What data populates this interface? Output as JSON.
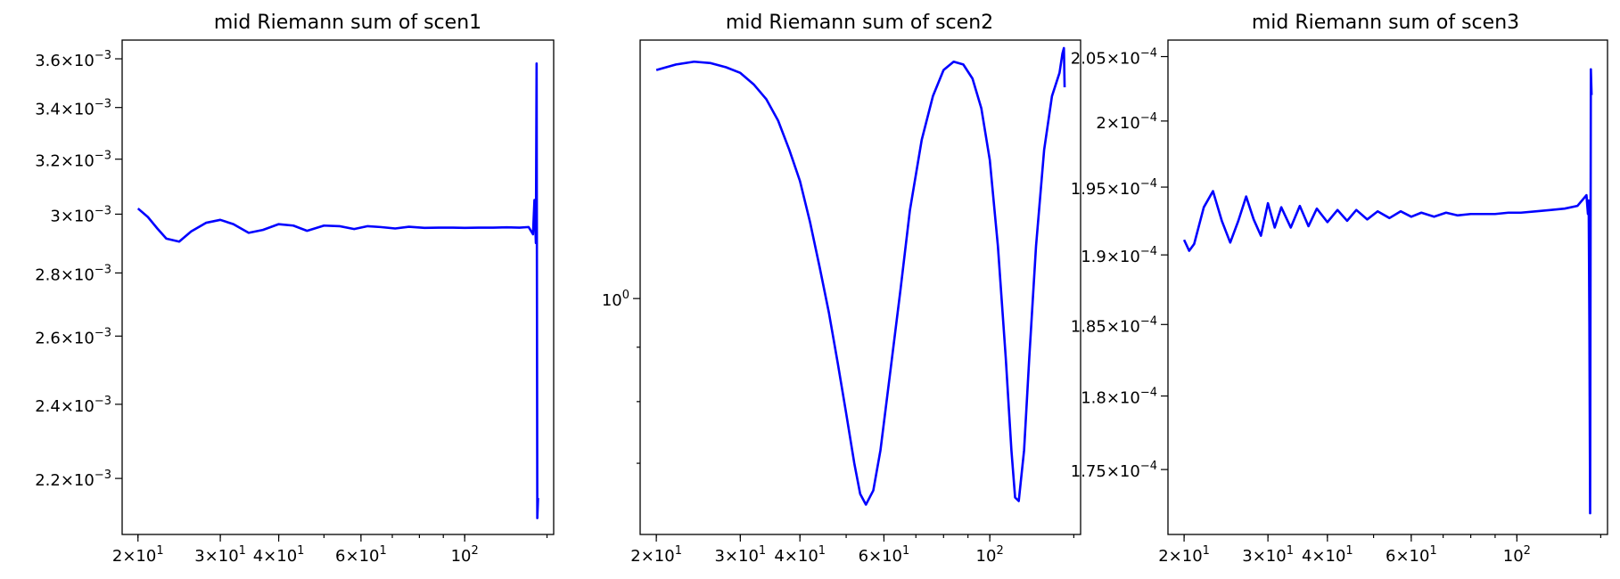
{
  "chart_data": [
    {
      "type": "line",
      "title": "mid Riemann sum of scen1",
      "x_scale": "log",
      "y_scale": "log",
      "xlim": [
        18.5,
        155
      ],
      "ylim": [
        0.00206,
        0.00368
      ],
      "x_ticks": [
        {
          "value": 20,
          "label": "2×10",
          "exp": "1"
        },
        {
          "value": 30,
          "label": "3×10",
          "exp": "1"
        },
        {
          "value": 40,
          "label": "4×10",
          "exp": "1"
        },
        {
          "value": 60,
          "label": "6×10",
          "exp": "1"
        },
        {
          "value": 100,
          "label": "10",
          "exp": "2"
        }
      ],
      "y_ticks": [
        {
          "value": 0.0022,
          "label": "2.2×10",
          "exp": "−3"
        },
        {
          "value": 0.0024,
          "label": "2.4×10",
          "exp": "−3"
        },
        {
          "value": 0.0026,
          "label": "2.6×10",
          "exp": "−3"
        },
        {
          "value": 0.0028,
          "label": "2.8×10",
          "exp": "−3"
        },
        {
          "value": 0.003,
          "label": "3×10",
          "exp": "−3"
        },
        {
          "value": 0.0032,
          "label": "3.2×10",
          "exp": "−3"
        },
        {
          "value": 0.0034,
          "label": "3.4×10",
          "exp": "−3"
        },
        {
          "value": 0.0036,
          "label": "3.6×10",
          "exp": "−3"
        }
      ],
      "series": [
        {
          "color": "#0000ff",
          "x": [
            20,
            21,
            22,
            23,
            24.5,
            26,
            28,
            30,
            32,
            34.5,
            37,
            40,
            43,
            46,
            50,
            54,
            58,
            62,
            66,
            71,
            76,
            82,
            88,
            94,
            100,
            107,
            115,
            123,
            131,
            137,
            140,
            141,
            142,
            142.5,
            143,
            143.5
          ],
          "y": [
            0.00302,
            0.00299,
            0.00295,
            0.002915,
            0.002905,
            0.00294,
            0.00297,
            0.00298,
            0.002965,
            0.002935,
            0.002945,
            0.002965,
            0.00296,
            0.002942,
            0.00296,
            0.002958,
            0.002948,
            0.002958,
            0.002955,
            0.00295,
            0.002956,
            0.002952,
            0.002953,
            0.002953,
            0.002952,
            0.002953,
            0.002953,
            0.002954,
            0.002953,
            0.002955,
            0.00293,
            0.00305,
            0.0029,
            0.00358,
            0.0021,
            0.00215
          ]
        }
      ]
    },
    {
      "type": "line",
      "title": "mid Riemann sum of scen2",
      "x_scale": "log",
      "y_scale": "log",
      "xlim": [
        18.5,
        155
      ],
      "ylim": [
        0.6,
        1.75
      ],
      "x_ticks": [
        {
          "value": 20,
          "label": "2×10",
          "exp": "1"
        },
        {
          "value": 30,
          "label": "3×10",
          "exp": "1"
        },
        {
          "value": 40,
          "label": "4×10",
          "exp": "1"
        },
        {
          "value": 60,
          "label": "6×10",
          "exp": "1"
        },
        {
          "value": 100,
          "label": "10",
          "exp": "2"
        }
      ],
      "y_ticks": [
        {
          "value": 1,
          "label": "10",
          "exp": "0"
        }
      ],
      "y_minor_ticks": [
        0.7,
        0.8,
        0.9,
        2,
        3,
        4,
        5,
        6
      ],
      "series": [
        {
          "color": "#0000ff",
          "x": [
            20,
            22,
            24,
            26,
            28,
            30,
            32,
            34,
            36,
            38,
            40,
            42,
            44,
            46,
            48,
            50,
            52,
            53.5,
            55,
            57,
            59,
            62,
            65,
            68,
            72,
            76,
            80,
            84,
            88,
            92,
            96,
            100,
            104,
            108,
            111,
            113,
            115,
            118,
            121,
            125,
            130,
            135,
            140,
            142,
            143,
            143.5
          ],
          "y": [
            1.64,
            1.66,
            1.67,
            1.665,
            1.65,
            1.63,
            1.59,
            1.54,
            1.47,
            1.38,
            1.29,
            1.18,
            1.07,
            0.97,
            0.87,
            0.78,
            0.7,
            0.655,
            0.64,
            0.66,
            0.72,
            0.86,
            1.02,
            1.21,
            1.41,
            1.55,
            1.64,
            1.67,
            1.66,
            1.61,
            1.51,
            1.35,
            1.12,
            0.88,
            0.72,
            0.65,
            0.645,
            0.72,
            0.88,
            1.12,
            1.38,
            1.55,
            1.63,
            1.7,
            1.72,
            1.58
          ]
        }
      ]
    },
    {
      "type": "line",
      "title": "mid Riemann sum of scen3",
      "x_scale": "log",
      "y_scale": "log",
      "xlim": [
        18.5,
        155
      ],
      "ylim": [
        0.0001707,
        0.0002063
      ],
      "x_ticks": [
        {
          "value": 20,
          "label": "2×10",
          "exp": "1"
        },
        {
          "value": 30,
          "label": "3×10",
          "exp": "1"
        },
        {
          "value": 40,
          "label": "4×10",
          "exp": "1"
        },
        {
          "value": 60,
          "label": "6×10",
          "exp": "1"
        },
        {
          "value": 100,
          "label": "10",
          "exp": "2"
        }
      ],
      "y_ticks": [
        {
          "value": 0.000175,
          "label": "1.75×10",
          "exp": "−4"
        },
        {
          "value": 0.00018,
          "label": "1.8×10",
          "exp": "−4"
        },
        {
          "value": 0.000185,
          "label": "1.85×10",
          "exp": "−4"
        },
        {
          "value": 0.00019,
          "label": "1.9×10",
          "exp": "−4"
        },
        {
          "value": 0.000195,
          "label": "1.95×10",
          "exp": "−4"
        },
        {
          "value": 0.0002,
          "label": "2×10",
          "exp": "−4"
        },
        {
          "value": 0.000205,
          "label": "2.05×10",
          "exp": "−4"
        }
      ],
      "series": [
        {
          "color": "#0000ff",
          "x": [
            20,
            20.5,
            21,
            22,
            23,
            24,
            25,
            26,
            27,
            28,
            29,
            30,
            31,
            32,
            33.5,
            35,
            36.5,
            38,
            40,
            42,
            44,
            46,
            48.5,
            51,
            54,
            57,
            60,
            63,
            67,
            71,
            75,
            80,
            85,
            90,
            96,
            102,
            110,
            118,
            126,
            134,
            140,
            141,
            141.5,
            142,
            142.5,
            143,
            143.5
          ],
          "y": [
            0.0001911,
            0.0001903,
            0.0001908,
            0.0001935,
            0.0001947,
            0.0001925,
            0.0001909,
            0.0001925,
            0.0001943,
            0.0001926,
            0.0001914,
            0.0001938,
            0.000192,
            0.0001935,
            0.000192,
            0.0001936,
            0.0001921,
            0.0001934,
            0.0001924,
            0.0001933,
            0.0001925,
            0.0001933,
            0.0001926,
            0.0001932,
            0.0001927,
            0.0001932,
            0.0001928,
            0.0001931,
            0.0001928,
            0.0001931,
            0.0001929,
            0.000193,
            0.000193,
            0.000193,
            0.0001931,
            0.0001931,
            0.0001932,
            0.0001933,
            0.0001934,
            0.0001936,
            0.0001944,
            0.000193,
            0.000194,
            0.000185,
            0.0001721,
            0.000204,
            0.000202
          ]
        }
      ]
    }
  ]
}
